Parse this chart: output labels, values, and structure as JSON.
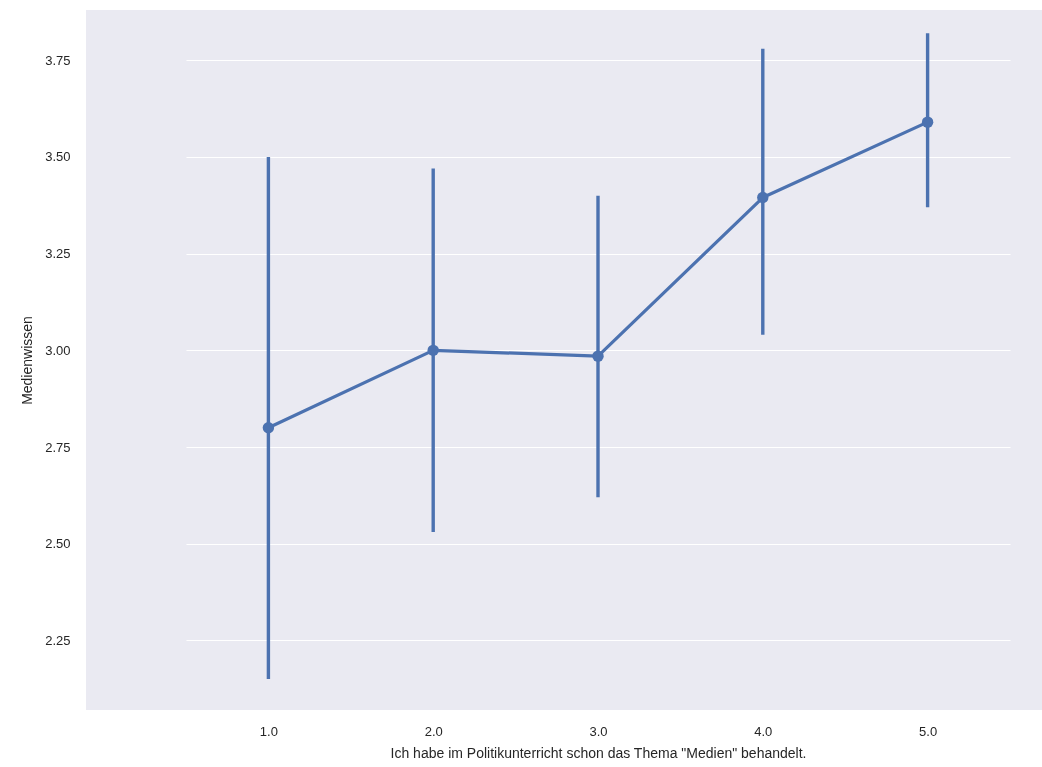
{
  "chart_data": {
    "type": "line",
    "xlabel": "Ich habe im Politikunterricht schon das Thema \"Medien\" behandelt.",
    "ylabel": "Medienwissen",
    "categories": [
      "1.0",
      "2.0",
      "3.0",
      "4.0",
      "5.0"
    ],
    "series": [
      {
        "color": "#4c72b0",
        "values": [
          2.8,
          3.0,
          2.985,
          3.395,
          3.59
        ],
        "errors": [
          [
            2.15,
            3.5
          ],
          [
            2.53,
            3.47
          ],
          [
            2.62,
            3.4
          ],
          [
            3.04,
            3.78
          ],
          [
            3.37,
            3.82
          ]
        ]
      }
    ],
    "ylim": [
      2.07,
      3.88
    ],
    "yticks": [
      2.25,
      {
        "value": 2.5,
        "label": "2.50"
      },
      2.75,
      {
        "value": 3.0,
        "label": "3.00"
      },
      3.25,
      {
        "value": 3.5,
        "label": "3.50"
      },
      3.75
    ],
    "grid": "y",
    "marker": "circle",
    "line_style": "solid"
  }
}
